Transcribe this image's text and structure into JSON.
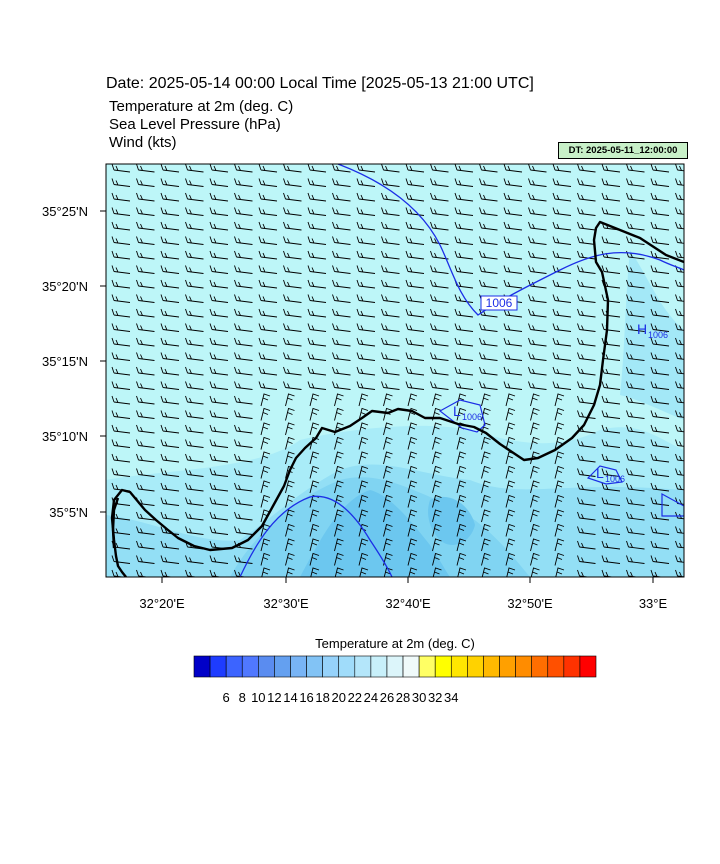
{
  "header": {
    "date_line": "Date: 2025-05-14  00:00 Local Time [2025-05-13  21:00 UTC]",
    "variables": [
      "Temperature at 2m   (deg. C)",
      "Sea Level Pressure   (hPa)",
      "Wind   (kts)"
    ],
    "dt_badge": "DT: 2025-05-11_12:00:00"
  },
  "map": {
    "lat_ticks": [
      "35°25'N",
      "35°20'N",
      "35°15'N",
      "35°10'N",
      "35°5'N"
    ],
    "lon_ticks": [
      "32°20'E",
      "32°30'E",
      "32°40'E",
      "32°50'E",
      "33°E"
    ],
    "isobar_labels": {
      "contour_label": "1006",
      "high_1": {
        "letter": "H",
        "value": "1006"
      },
      "low_1": {
        "letter": "L",
        "value": "1006"
      },
      "low_2": {
        "letter": "L",
        "value": "1006"
      }
    },
    "colors": {
      "sea": "#bdf6f8",
      "land_cool": "#70d0f2",
      "isobar": "#1c2ee6",
      "coast": "#000000",
      "wind_barb": "#000000"
    }
  },
  "colorbar": {
    "title": "Temperature at 2m  (deg. C)",
    "labels": [
      "6",
      "8",
      "10",
      "12",
      "14",
      "16",
      "18",
      "20",
      "22",
      "24",
      "26",
      "28",
      "30",
      "32",
      "34"
    ],
    "colors": [
      "#0000c8",
      "#1e3cff",
      "#3c64ff",
      "#5078ff",
      "#5a8cf0",
      "#64a0f0",
      "#78b4f5",
      "#82c3f5",
      "#96d2fa",
      "#a0dcfa",
      "#b4e6fa",
      "#c8f0fa",
      "#dcf5fa",
      "#f0fafa",
      "#ffff64",
      "#ffff00",
      "#ffe600",
      "#ffd200",
      "#ffb900",
      "#ffa000",
      "#ff8c00",
      "#ff6e00",
      "#ff5000",
      "#ff3200",
      "#ff0000"
    ]
  }
}
